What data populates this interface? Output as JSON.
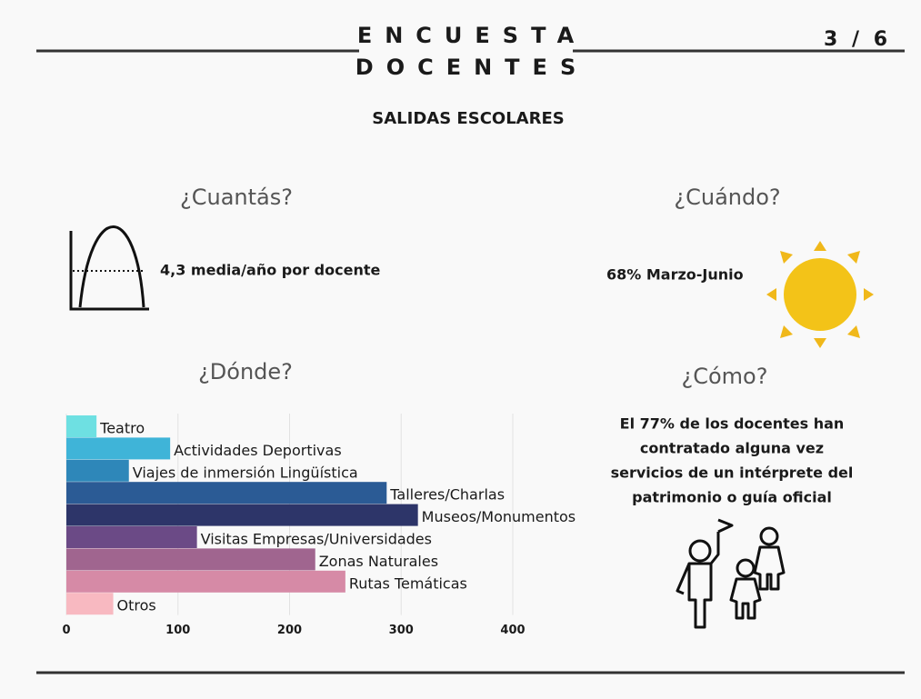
{
  "header": {
    "title_line1": "ENCUESTA",
    "title_line2": "DOCENTES",
    "page": "3 / 6"
  },
  "heading": "SALIDAS ESCOLARES",
  "cuantas": {
    "title": "¿Cuantás?",
    "text": "4,3 media/año por docente"
  },
  "cuando": {
    "title": "¿Cuándo?",
    "text": "68% Marzo-Junio"
  },
  "como": {
    "title": "¿Cómo?",
    "lines": [
      "El 77% de los docentes han",
      "contratado alguna vez",
      "servicios de un intérprete del",
      "patrimonio o guía oficial"
    ]
  },
  "chart_data": {
    "type": "bar",
    "orientation": "horizontal",
    "title": "¿Dónde?",
    "categories": [
      "Teatro",
      "Actividades Deportivas",
      "Viajes de inmersión Lingüística",
      "Talleres/Charlas",
      "Museos/Monumentos",
      "Visitas Empresas/Universidades",
      "Zonas Naturales",
      "Rutas Temáticas",
      "Otros"
    ],
    "values": [
      27,
      93,
      56,
      287,
      315,
      117,
      223,
      250,
      42
    ],
    "colors": [
      "#6ee0e2",
      "#3fb4d8",
      "#2e87b9",
      "#2b5b95",
      "#2d3569",
      "#6b4a86",
      "#a0658f",
      "#d68aa6",
      "#f8b9c1"
    ],
    "xlim": [
      0,
      400
    ],
    "xticks": [
      0,
      100,
      200,
      300,
      400
    ],
    "grid": true
  }
}
